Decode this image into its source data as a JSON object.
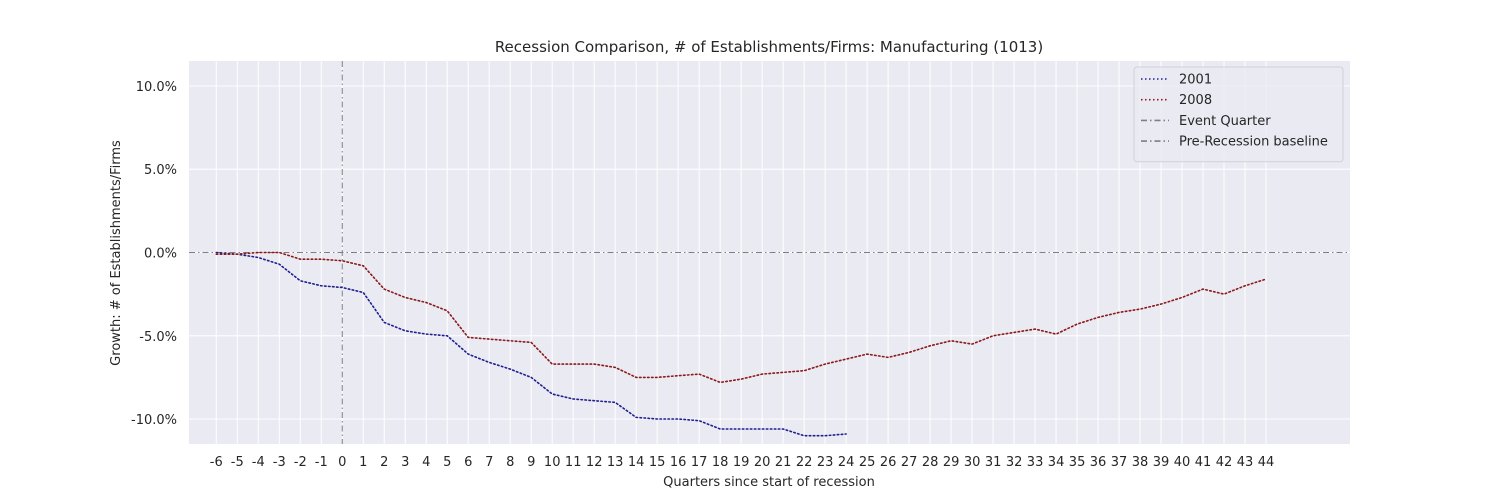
{
  "chart_data": {
    "type": "line",
    "title": "Recession Comparison, # of Establishments/Firms: Manufacturing (1013)",
    "xlabel": "Quarters since start of recession",
    "ylabel": "Growth: # of Establishments/Firms",
    "xlim": [
      -7.3,
      48.0
    ],
    "ylim": [
      -11.5,
      11.5
    ],
    "x_ticks": [
      -6,
      -5,
      -4,
      -3,
      -2,
      -1,
      0,
      1,
      2,
      3,
      4,
      5,
      6,
      7,
      8,
      9,
      10,
      11,
      12,
      13,
      14,
      15,
      16,
      17,
      18,
      19,
      20,
      21,
      22,
      23,
      24,
      25,
      26,
      27,
      28,
      29,
      30,
      31,
      32,
      33,
      34,
      35,
      36,
      37,
      38,
      39,
      40,
      41,
      42,
      43,
      44
    ],
    "y_ticks": [
      -10,
      -5,
      0,
      5,
      10
    ],
    "y_tick_labels": [
      "-10.0%",
      "-5.0%",
      "0.0%",
      "5.0%",
      "10.0%"
    ],
    "grid": true,
    "legend_position": "top-right",
    "series": [
      {
        "name": "2001",
        "color": "#1f1f8f",
        "style": "dotted",
        "x": [
          -6,
          -5,
          -4,
          -3,
          -2,
          -1,
          0,
          1,
          2,
          3,
          4,
          5,
          6,
          7,
          8,
          9,
          10,
          11,
          12,
          13,
          14,
          15,
          16,
          17,
          18,
          19,
          20,
          21,
          22,
          23,
          24
        ],
        "values": [
          0.0,
          -0.1,
          -0.3,
          -0.7,
          -1.7,
          -2.0,
          -2.1,
          -2.4,
          -4.2,
          -4.7,
          -4.9,
          -5.0,
          -6.1,
          -6.6,
          -7.0,
          -7.5,
          -8.5,
          -8.8,
          -8.9,
          -9.0,
          -9.9,
          -10.0,
          -10.0,
          -10.1,
          -10.6,
          -10.6,
          -10.6,
          -10.6,
          -11.0,
          -11.0,
          -10.9
        ]
      },
      {
        "name": "2008",
        "color": "#8b1a1a",
        "style": "dotted",
        "x": [
          -6,
          -5,
          -4,
          -3,
          -2,
          -1,
          0,
          1,
          2,
          3,
          4,
          5,
          6,
          7,
          8,
          9,
          10,
          11,
          12,
          13,
          14,
          15,
          16,
          17,
          18,
          19,
          20,
          21,
          22,
          23,
          24,
          25,
          26,
          27,
          28,
          29,
          30,
          31,
          32,
          33,
          34,
          35,
          36,
          37,
          38,
          39,
          40,
          41,
          42,
          43,
          44
        ],
        "values": [
          -0.1,
          -0.1,
          0.0,
          0.0,
          -0.4,
          -0.4,
          -0.5,
          -0.8,
          -2.2,
          -2.7,
          -3.0,
          -3.5,
          -5.1,
          -5.2,
          -5.3,
          -5.4,
          -6.7,
          -6.7,
          -6.7,
          -6.9,
          -7.5,
          -7.5,
          -7.4,
          -7.3,
          -7.8,
          -7.6,
          -7.3,
          -7.2,
          -7.1,
          -6.7,
          -6.4,
          -6.1,
          -6.3,
          -6.0,
          -5.6,
          -5.3,
          -5.5,
          -5.0,
          -4.8,
          -4.6,
          -4.9,
          -4.3,
          -3.9,
          -3.6,
          -3.4,
          -3.1,
          -2.7,
          -2.2,
          -2.5,
          -2.0,
          -1.6
        ]
      }
    ],
    "reference_lines": [
      {
        "name": "Event Quarter",
        "orientation": "vertical",
        "value": 0,
        "color": "#7f7f7f",
        "style": "dashdot"
      },
      {
        "name": "Pre-Recession baseline",
        "orientation": "horizontal",
        "value": 0,
        "color": "#7f7f7f",
        "style": "dashdot"
      }
    ],
    "plot_background": "#eaeaf2"
  }
}
